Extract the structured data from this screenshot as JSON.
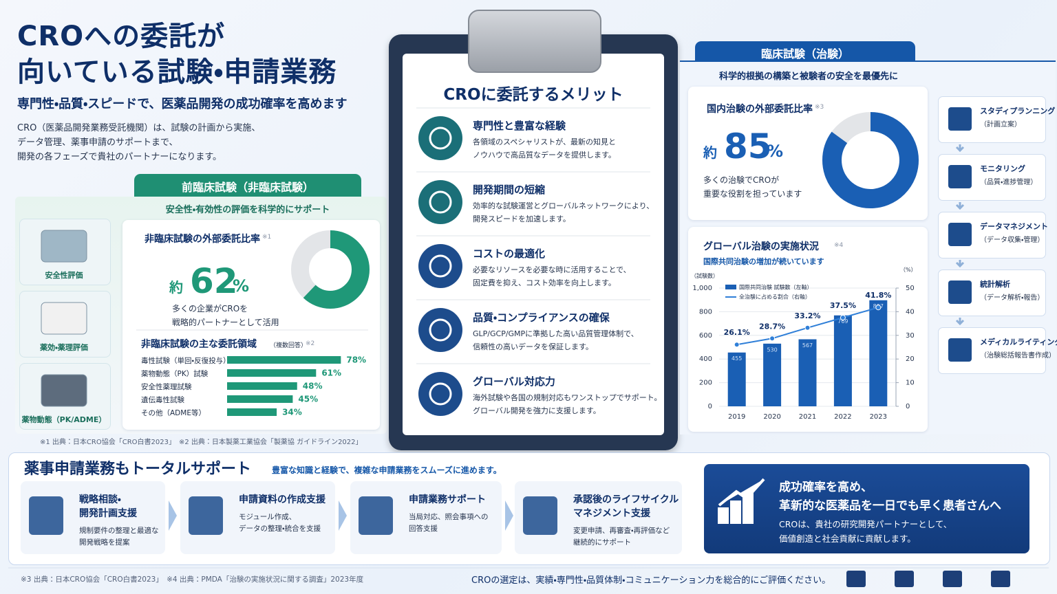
{
  "header": {
    "title": [
      "CROへの委託が",
      "向いている試験・申請業務"
    ],
    "subtitle": "専門性・品質・スピードで、医薬品開発の成功確率を高めます",
    "description": [
      "CRO（医薬品開発業務受託機関）は、試験の計画から実施、",
      "データ管理、薬事申請のサポートまで、",
      "開発の各フェーズで貴社のパートナーになります。"
    ]
  },
  "preclinical": {
    "heading": "前臨床試験（非臨床試験）",
    "subheading": "安全性・有効性の評価を科学的にサポート",
    "areas": [
      "安全性評価",
      "薬効・薬理評価",
      "薬物動態（PK/ADME）"
    ],
    "footnote": "※1 出典：日本CRO協会「CRO白書2023」　※2 出典：日本製薬工業協会「製薬協 ガイドライン2022」"
  },
  "merits": {
    "title": "CROに委託するメリット",
    "items": [
      {
        "title": "専門性と豊富な経験",
        "description": [
          "各領域のスペシャリストが、最新の知見と",
          "ノウハウで高品質なデータを提供します。"
        ]
      },
      {
        "title": "開発期間の短縮",
        "description": [
          "効率的な試験運営とグローバルネットワークにより、",
          "開発スピードを加速します。"
        ]
      },
      {
        "title": "コストの最適化",
        "description": [
          "必要なリソースを必要な時に活用することで、",
          "固定費を抑え、コスト効率を向上します。"
        ]
      },
      {
        "title": "品質・コンプライアンスの確保",
        "description": [
          "GLP/GCP/GMPに準拠した高い品質管理体制で、",
          "信頼性の高いデータを保証します。"
        ]
      },
      {
        "title": "グローバル対応力",
        "description": [
          "海外試験や各国の規制対応もワンストップでサポート。",
          "グローバル開発を強力に支援します。"
        ]
      }
    ]
  },
  "clinical": {
    "heading": "臨床試験（治験）",
    "subheading": "科学的根拠の構築と被験者の安全を最優先に",
    "process": [
      {
        "title": "スタディプランニング",
        "detail": "（計画立案）"
      },
      {
        "title": "モニタリング",
        "detail": "（品質・進捗管理）"
      },
      {
        "title": "データマネジメント",
        "detail": "（データ収集・管理）"
      },
      {
        "title": "統計解析",
        "detail": "（データ解析・報告）"
      },
      {
        "title": "メディカルライティング",
        "detail": "（治験総括報告書作成）"
      }
    ]
  },
  "regulatory": {
    "title": "薬事申請業務もトータルサポート",
    "subtitle": "豊富な知識と経験で、複雑な申請業務をスムーズに進めます。",
    "steps": [
      {
        "title": [
          "戦略相談・",
          "開発計画支援"
        ],
        "description": [
          "規制要件の整理と最適な",
          "開発戦略を提案"
        ]
      },
      {
        "title": [
          "申請資料の作成支援"
        ],
        "description": [
          "モジュール作成、",
          "データの整理・統合を支援"
        ]
      },
      {
        "title": [
          "申請業務サポート"
        ],
        "description": [
          "当局対応、照会事項への",
          "回答支援"
        ]
      },
      {
        "title": [
          "承認後のライフサイクル",
          "マネジメント支援"
        ],
        "description": [
          "変更申請、再審査・再評価など",
          "継続的にサポート"
        ]
      }
    ],
    "message": {
      "title": [
        "成功確率を高め、",
        "革新的な医薬品を一日でも早く患者さんへ"
      ],
      "description": [
        "CROは、貴社の研究開発パートナーとして、",
        "価値創造と社会貢献に貢献します。"
      ]
    }
  },
  "footer": {
    "note": "※3 出典：日本CRO協会「CRO白書2023」　※4 出典：PMDA「治験の実施状況に関する調査」2023年度",
    "message": "CROの選定は、実績・専門性・品質体制・コミュニケーション力を総合的にご評価ください。"
  },
  "chart_data": [
    {
      "type": "donut",
      "title": "非臨床試験の外部委託比率",
      "note": "※1",
      "prefix": "約",
      "values": [
        62
      ],
      "unit": "%",
      "caption": [
        "多くの企業がCROを",
        "戦略的パートナーとして活用"
      ],
      "color": "#1f9878",
      "track_color": "#e3e5e8"
    },
    {
      "type": "hbar",
      "title": "非臨床試験の主な委託領域",
      "qualifier": "（複数回答）",
      "note": "※2",
      "categories": [
        "毒性試験（単回・反復投与）",
        "薬物動態（PK）試験",
        "安全性薬理試験",
        "遺伝毒性試験",
        "その他（ADME等）"
      ],
      "values": [
        78,
        61,
        48,
        45,
        34
      ],
      "value_labels": [
        "78%",
        "61%",
        "48%",
        "45%",
        "34%"
      ],
      "color": "#1f9878"
    },
    {
      "type": "donut",
      "title": "国内治験の外部委託比率",
      "note": "※3",
      "prefix": "約",
      "values": [
        85
      ],
      "unit": "%",
      "caption": [
        "多くの治験でCROが",
        "重要な役割を担っています"
      ],
      "color": "#1a5fb4",
      "track_color": "#e3e5e8"
    },
    {
      "type": "combo",
      "title": "グローバル治験の実施状況",
      "note": "※4",
      "subtitle": "国際共同治験の増加が続いています",
      "ylabel": "（試験数）",
      "y2label": "（%）",
      "categories": [
        "2019",
        "2020",
        "2021",
        "2022",
        "2023"
      ],
      "series": [
        {
          "name": "国際共同治験 試験数（左軸）",
          "type": "bar",
          "color": "#1a5fb4",
          "values": [
            455,
            530,
            567,
            769,
            897
          ]
        },
        {
          "name": "全治験に占める割合（右軸）",
          "type": "line",
          "axis": "y2",
          "color": "#2f7fd8",
          "values": [
            26.1,
            28.7,
            33.2,
            37.5,
            41.8
          ],
          "value_labels": [
            "26.1%",
            "28.7%",
            "33.2%",
            "37.5%",
            "41.8%"
          ]
        }
      ],
      "ylim": [
        0,
        1000
      ],
      "yticks": [
        0,
        200,
        400,
        600,
        800,
        {
          "value": 1000,
          "label": "1,000"
        }
      ],
      "y2lim": [
        0,
        50
      ],
      "y2ticks": [
        0,
        10,
        20,
        30,
        40,
        50
      ],
      "grid": true
    }
  ]
}
